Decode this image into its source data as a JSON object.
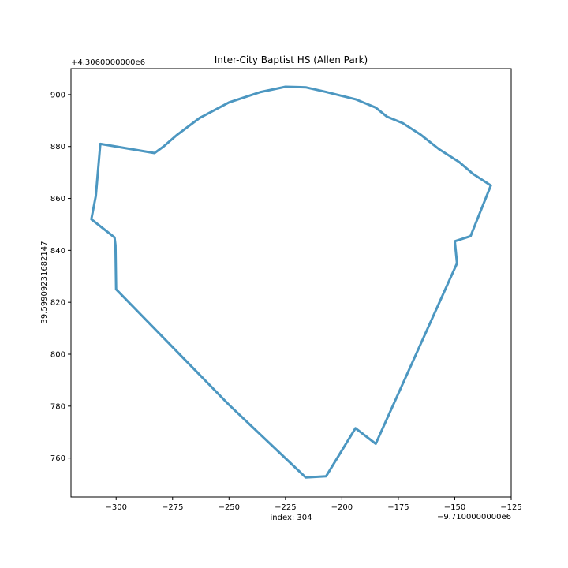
{
  "chart_data": {
    "type": "line",
    "title": "Inter-City Baptist HS (Allen Park)",
    "xlabel": "index: 304",
    "ylabel": "39.59909231682147",
    "x_offset_label": "−9.7100000000e6",
    "y_offset_label": "+4.3060000000e6",
    "xlim": [
      -320,
      -125
    ],
    "ylim": [
      745,
      910
    ],
    "x_ticks": [
      -300,
      -275,
      -250,
      -225,
      -200,
      -175,
      -150,
      -125
    ],
    "x_tick_labels": [
      "−300",
      "−275",
      "−250",
      "−225",
      "−200",
      "−175",
      "−150",
      "−125"
    ],
    "y_ticks": [
      760,
      780,
      800,
      820,
      840,
      860,
      880,
      900
    ],
    "y_tick_labels": [
      "760",
      "780",
      "800",
      "820",
      "840",
      "860",
      "880",
      "900"
    ],
    "grid": false,
    "line_color": "#4c97c1",
    "series": [
      {
        "x": [
          -307,
          -283,
          -279,
          -273,
          -263,
          -250,
          -236,
          -225,
          -216,
          -207,
          -200,
          -194,
          -185,
          -180,
          -173,
          -165,
          -157,
          -148,
          -142,
          -134,
          -143,
          -150,
          -149,
          -185,
          -194,
          -207,
          -216,
          -250,
          -300,
          -300.3,
          -300.7,
          -311,
          -309,
          -307
        ],
        "y": [
          881,
          877.5,
          880,
          884.5,
          891,
          897,
          901,
          903,
          902.8,
          901,
          899.5,
          898.2,
          895,
          891.5,
          889,
          884.5,
          879,
          874,
          869.5,
          865,
          845.5,
          843.5,
          835,
          765.5,
          771.5,
          753,
          752.5,
          780.5,
          825,
          842,
          845,
          852,
          861,
          881
        ]
      }
    ]
  }
}
